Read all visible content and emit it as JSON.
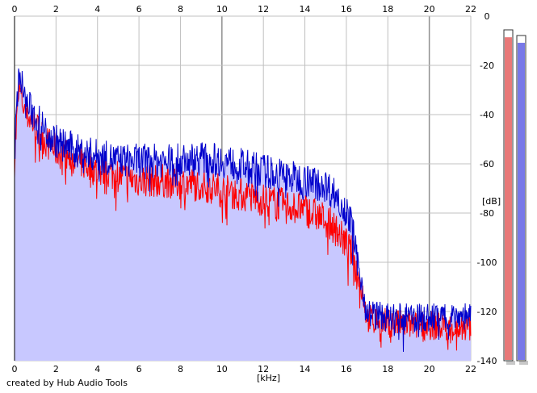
{
  "app": {
    "credit": "created by Hub Audio Tools"
  },
  "meters": {
    "left_color": "#e87878",
    "right_color": "#7878e8",
    "left_level": 0.98,
    "right_level": 0.98
  },
  "chart_data": {
    "type": "area",
    "title": "",
    "xlabel": "[kHz]",
    "ylabel": "[dB]",
    "xlim": [
      0,
      22
    ],
    "ylim": [
      -140,
      0
    ],
    "x_ticks": [
      "0",
      "2",
      "4",
      "6",
      "8",
      "10",
      "12",
      "14",
      "16",
      "18",
      "20",
      "22"
    ],
    "y_ticks": [
      "0",
      "-20",
      "-40",
      "-60",
      "-80",
      "-100",
      "-120",
      "-140"
    ],
    "grid": true,
    "colors": {
      "fill": "#c8c8ff",
      "series_red": "#ff0000",
      "series_blue": "#0000cc",
      "grid": "#c0c0c0",
      "grid_major": "#909090"
    },
    "series": [
      {
        "color": "#ff0000",
        "x": [
          0,
          0.2,
          0.5,
          1,
          1.5,
          2,
          3,
          4,
          5,
          6,
          7,
          8,
          9,
          10,
          11,
          12,
          13,
          14,
          15,
          15.5,
          16,
          16.3,
          16.5,
          16.8,
          17,
          18,
          19,
          20,
          21,
          22
        ],
        "values": [
          -58,
          -28,
          -38,
          -44,
          -50,
          -54,
          -58,
          -62,
          -64,
          -66,
          -66,
          -67,
          -68,
          -70,
          -72,
          -74,
          -76,
          -78,
          -82,
          -86,
          -92,
          -96,
          -104,
          -112,
          -122,
          -124,
          -125,
          -125,
          -126,
          -126
        ]
      },
      {
        "color": "#0000cc",
        "x": [
          0,
          0.2,
          0.5,
          1,
          1.5,
          2,
          3,
          4,
          5,
          6,
          7,
          8,
          9,
          10,
          11,
          12,
          13,
          14,
          15,
          15.5,
          16,
          16.3,
          16.5,
          16.8,
          17,
          18,
          19,
          20,
          21,
          22
        ],
        "values": [
          -55,
          -20,
          -34,
          -40,
          -46,
          -50,
          -54,
          -56,
          -58,
          -58,
          -58,
          -58,
          -57,
          -58,
          -60,
          -62,
          -64,
          -66,
          -68,
          -72,
          -78,
          -86,
          -98,
          -110,
          -120,
          -122,
          -122,
          -122,
          -121,
          -121
        ]
      }
    ]
  }
}
